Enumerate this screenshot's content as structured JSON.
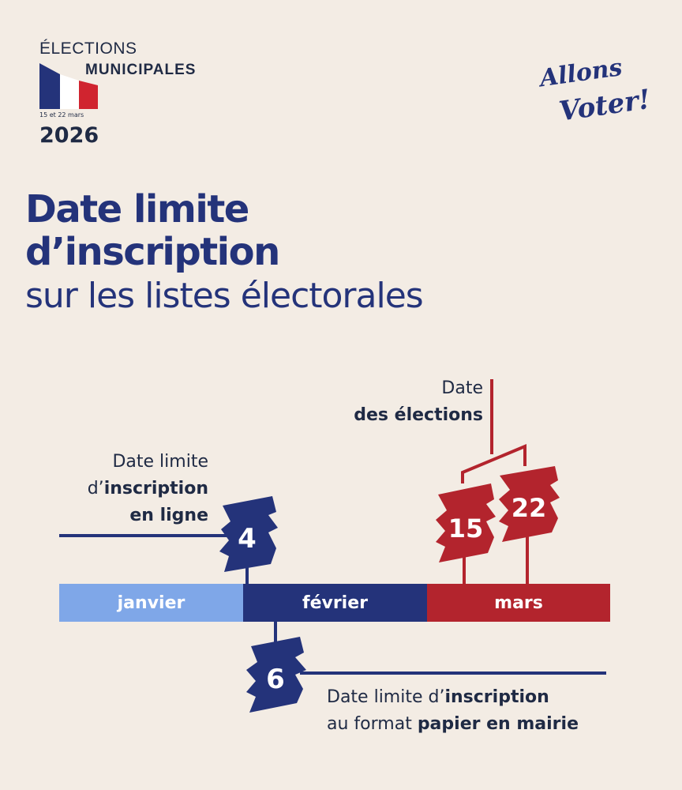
{
  "header": {
    "elections": "ÉLECTIONS",
    "municipales": "MUNICIPALES",
    "dates": "15 et 22 mars",
    "year": "2026"
  },
  "logo": {
    "text": "Allons Voter!"
  },
  "title": {
    "line1": "Date limite",
    "line2": "d’inscription",
    "line3": "sur les listes électorales"
  },
  "notes": {
    "online": {
      "a": "Date limite",
      "b_pre": "d’",
      "b_bold": "inscription",
      "c": "en ligne"
    },
    "elections": {
      "a": "Date",
      "b": "des élections"
    },
    "paper": {
      "a_pre": "Date limite d’",
      "a_bold": "inscription",
      "b_pre": "au format ",
      "b_bold": "papier en mairie"
    }
  },
  "months": [
    "janvier",
    "février",
    "mars"
  ],
  "badges": {
    "online": "4",
    "paper": "6",
    "election1": "15",
    "election2": "22"
  },
  "colors": {
    "navy": "#24337a",
    "red": "#b3242d",
    "light_blue": "#7fa7e8",
    "background": "#f3ece4"
  }
}
